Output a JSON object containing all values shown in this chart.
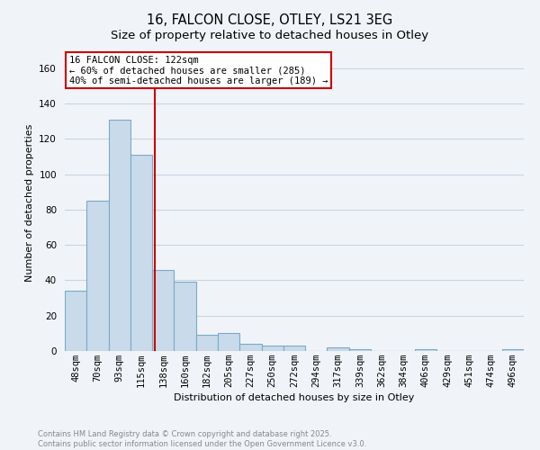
{
  "title": "16, FALCON CLOSE, OTLEY, LS21 3EG",
  "subtitle": "Size of property relative to detached houses in Otley",
  "xlabel": "Distribution of detached houses by size in Otley",
  "ylabel": "Number of detached properties",
  "categories": [
    "48sqm",
    "70sqm",
    "93sqm",
    "115sqm",
    "138sqm",
    "160sqm",
    "182sqm",
    "205sqm",
    "227sqm",
    "250sqm",
    "272sqm",
    "294sqm",
    "317sqm",
    "339sqm",
    "362sqm",
    "384sqm",
    "406sqm",
    "429sqm",
    "451sqm",
    "474sqm",
    "496sqm"
  ],
  "values": [
    34,
    85,
    131,
    111,
    46,
    39,
    9,
    10,
    4,
    3,
    3,
    0,
    2,
    1,
    0,
    0,
    1,
    0,
    0,
    0,
    1
  ],
  "bar_color": "#c9daea",
  "bar_edge_color": "#7aaac8",
  "vline_x": 3.62,
  "vline_color": "#cc0000",
  "annotation_text": "16 FALCON CLOSE: 122sqm\n← 60% of detached houses are smaller (285)\n40% of semi-detached houses are larger (189) →",
  "annotation_box_color": "#ffffff",
  "annotation_box_edge": "#cc0000",
  "ylim": [
    0,
    168
  ],
  "yticks": [
    0,
    20,
    40,
    60,
    80,
    100,
    120,
    140,
    160
  ],
  "footer_line1": "Contains HM Land Registry data © Crown copyright and database right 2025.",
  "footer_line2": "Contains public sector information licensed under the Open Government Licence v3.0.",
  "bg_color": "#f0f4f8",
  "grid_color": "#c8d4e0",
  "title_fontsize": 10.5,
  "subtitle_fontsize": 9.5,
  "xlabel_fontsize": 8,
  "ylabel_fontsize": 8,
  "tick_fontsize": 7.5,
  "annotation_fontsize": 7.5
}
